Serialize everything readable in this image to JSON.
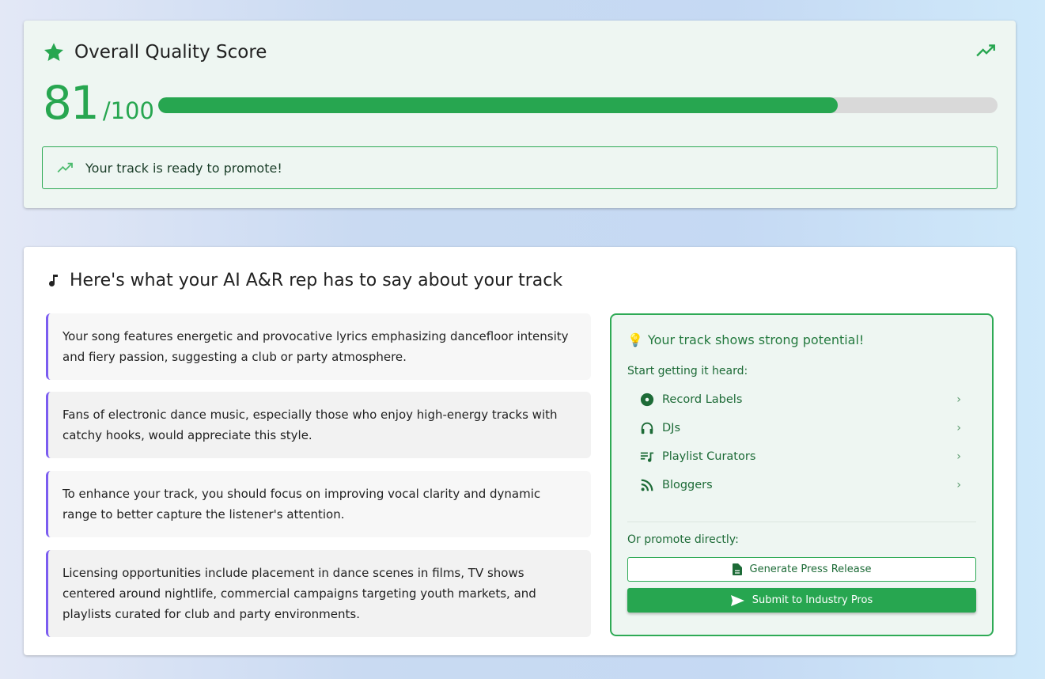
{
  "score_card": {
    "title": "Overall Quality Score",
    "score": "81",
    "out_of": "/100",
    "progress_percent": 81,
    "status_message": "Your track is ready to promote!",
    "accent_color": "#27a650"
  },
  "feedback": {
    "title": "Here's what your AI A&R rep has to say about your track",
    "items": [
      "Your song features energetic and provocative lyrics emphasizing dancefloor intensity and fiery passion, suggesting a club or party atmosphere.",
      "Fans of electronic dance music, especially those who enjoy high-energy tracks with catchy hooks, would appreciate this style.",
      "To enhance your track, you should focus on improving vocal clarity and dynamic range to better capture the listener's attention.",
      "Licensing opportunities include placement in dance scenes in films, TV shows centered around nightlife, commercial campaigns targeting youth markets, and playlists curated for club and party environments."
    ]
  },
  "promo_panel": {
    "title": "Your track shows strong potential!",
    "heard_label": "Start getting it heard:",
    "options": [
      {
        "label": "Record Labels",
        "icon": "album-icon"
      },
      {
        "label": "DJs",
        "icon": "headphones-icon"
      },
      {
        "label": "Playlist Curators",
        "icon": "playlist-icon"
      },
      {
        "label": "Bloggers",
        "icon": "rss-icon"
      }
    ],
    "direct_label": "Or promote directly:",
    "press_release_button": "Generate Press Release",
    "submit_button": "Submit to Industry Pros"
  }
}
